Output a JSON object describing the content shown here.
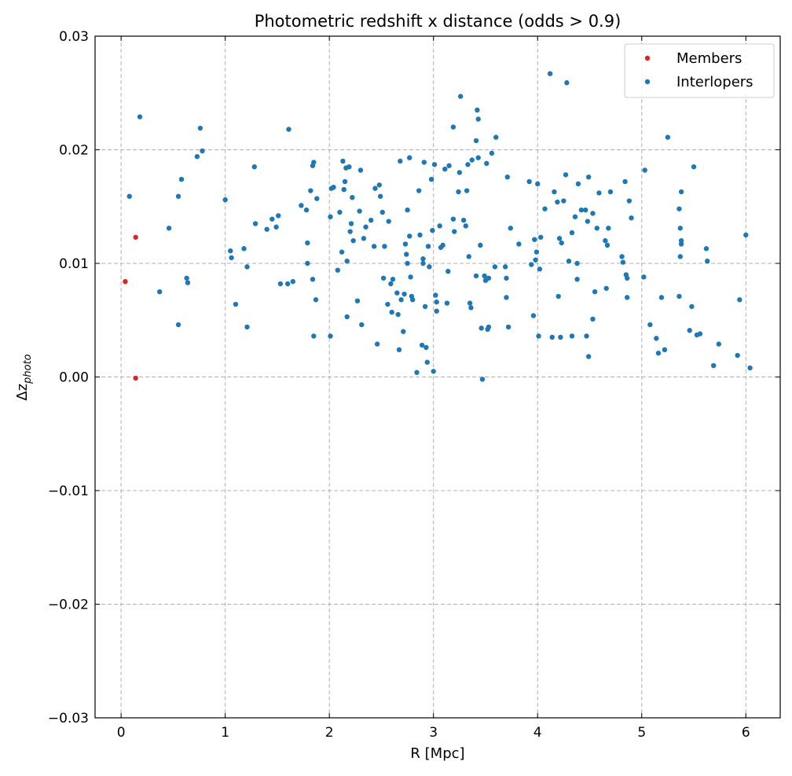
{
  "chart_data": {
    "type": "scatter",
    "title": "Photometric redshift x distance (odds > 0.9)",
    "xlabel": "R [Mpc]",
    "ylabel_main": "Δz",
    "ylabel_sub": "photo",
    "xlim": [
      -0.25,
      6.33
    ],
    "ylim": [
      -0.03,
      0.03
    ],
    "x_ticks": [
      0,
      1,
      2,
      3,
      4,
      5,
      6
    ],
    "x_tick_labels": [
      "0",
      "1",
      "2",
      "3",
      "4",
      "5",
      "6"
    ],
    "y_ticks": [
      -0.03,
      -0.02,
      -0.01,
      0.0,
      0.01,
      0.02,
      0.03
    ],
    "y_tick_labels": [
      "−0.03",
      "−0.02",
      "−0.01",
      "0.00",
      "0.01",
      "0.02",
      "0.03"
    ],
    "grid": true,
    "legend_position": "top-right",
    "series": [
      {
        "name": "Members",
        "color": "#d62728",
        "points": [
          [
            0.04,
            0.0084
          ],
          [
            0.14,
            0.0123
          ],
          [
            0.14,
            -0.0001
          ]
        ]
      },
      {
        "name": "Interlopers",
        "color": "#1f77b4",
        "points": [
          [
            0.08,
            0.0159
          ],
          [
            0.18,
            0.0229
          ],
          [
            0.37,
            0.0075
          ],
          [
            0.46,
            0.0131
          ],
          [
            0.55,
            0.0159
          ],
          [
            0.55,
            0.0046
          ],
          [
            0.58,
            0.0174
          ],
          [
            0.63,
            0.0087
          ],
          [
            0.64,
            0.0083
          ],
          [
            0.73,
            0.0194
          ],
          [
            0.76,
            0.0219
          ],
          [
            0.78,
            0.0199
          ],
          [
            1.0,
            0.0156
          ],
          [
            1.05,
            0.0111
          ],
          [
            1.06,
            0.0105
          ],
          [
            1.1,
            0.0064
          ],
          [
            1.18,
            0.0113
          ],
          [
            1.21,
            0.0097
          ],
          [
            1.21,
            0.0044
          ],
          [
            1.28,
            0.0185
          ],
          [
            1.29,
            0.0135
          ],
          [
            1.4,
            0.013
          ],
          [
            1.45,
            0.0139
          ],
          [
            1.49,
            0.0132
          ],
          [
            1.51,
            0.0142
          ],
          [
            1.53,
            0.0082
          ],
          [
            1.6,
            0.0082
          ],
          [
            1.61,
            0.0218
          ],
          [
            1.65,
            0.0084
          ],
          [
            1.73,
            0.0151
          ],
          [
            1.78,
            0.0147
          ],
          [
            1.79,
            0.01
          ],
          [
            1.79,
            0.0118
          ],
          [
            1.82,
            0.0164
          ],
          [
            1.84,
            0.0086
          ],
          [
            1.84,
            0.0186
          ],
          [
            1.85,
            0.0189
          ],
          [
            1.85,
            0.0036
          ],
          [
            1.87,
            0.0068
          ],
          [
            1.88,
            0.0157
          ],
          [
            2.01,
            0.0141
          ],
          [
            2.01,
            0.0036
          ],
          [
            2.02,
            0.0166
          ],
          [
            2.04,
            0.0167
          ],
          [
            2.08,
            0.0094
          ],
          [
            2.1,
            0.0145
          ],
          [
            2.12,
            0.011
          ],
          [
            2.13,
            0.019
          ],
          [
            2.14,
            0.0165
          ],
          [
            2.15,
            0.0172
          ],
          [
            2.16,
            0.0184
          ],
          [
            2.17,
            0.0102
          ],
          [
            2.17,
            0.0053
          ],
          [
            2.19,
            0.0185
          ],
          [
            2.2,
            0.0128
          ],
          [
            2.21,
            0.0135
          ],
          [
            2.22,
            0.0158
          ],
          [
            2.23,
            0.012
          ],
          [
            2.27,
            0.0067
          ],
          [
            2.29,
            0.0146
          ],
          [
            2.3,
            0.0182
          ],
          [
            2.31,
            0.0046
          ],
          [
            2.33,
            0.0122
          ],
          [
            2.35,
            0.0132
          ],
          [
            2.4,
            0.0138
          ],
          [
            2.43,
            0.0115
          ],
          [
            2.44,
            0.0166
          ],
          [
            2.46,
            0.0029
          ],
          [
            2.48,
            0.0169
          ],
          [
            2.49,
            0.0159
          ],
          [
            2.51,
            0.0145
          ],
          [
            2.52,
            0.0087
          ],
          [
            2.53,
            0.0115
          ],
          [
            2.56,
            0.0064
          ],
          [
            2.57,
            0.0137
          ],
          [
            2.59,
            0.0082
          ],
          [
            2.6,
            0.0057
          ],
          [
            2.61,
            0.0086
          ],
          [
            2.65,
            0.0074
          ],
          [
            2.66,
            0.0055
          ],
          [
            2.67,
            0.0024
          ],
          [
            2.68,
            0.019
          ],
          [
            2.69,
            0.0068
          ],
          [
            2.71,
            0.004
          ],
          [
            2.72,
            0.0073
          ],
          [
            2.73,
            0.0117
          ],
          [
            2.74,
            0.0108
          ],
          [
            2.75,
            0.0147
          ],
          [
            2.75,
            0.01
          ],
          [
            2.77,
            0.0124
          ],
          [
            2.77,
            0.0193
          ],
          [
            2.78,
            0.0088
          ],
          [
            2.79,
            0.0071
          ],
          [
            2.8,
            0.0068
          ],
          [
            2.84,
            0.0004
          ],
          [
            2.86,
            0.0164
          ],
          [
            2.87,
            0.0125
          ],
          [
            2.89,
            0.0028
          ],
          [
            2.9,
            0.0104
          ],
          [
            2.9,
            0.01
          ],
          [
            2.91,
            0.0189
          ],
          [
            2.92,
            0.0062
          ],
          [
            2.93,
            0.0026
          ],
          [
            2.94,
            0.0013
          ],
          [
            2.95,
            0.0115
          ],
          [
            2.96,
            0.0097
          ],
          [
            2.98,
            0.0174
          ],
          [
            2.99,
            0.0129
          ],
          [
            3.0,
            0.0005
          ],
          [
            3.01,
            0.0187
          ],
          [
            3.02,
            0.0072
          ],
          [
            3.03,
            0.0066
          ],
          [
            3.03,
            0.0058
          ],
          [
            3.06,
            0.0133
          ],
          [
            3.07,
            0.0114
          ],
          [
            3.09,
            0.0116
          ],
          [
            3.11,
            0.0183
          ],
          [
            3.13,
            0.0065
          ],
          [
            3.14,
            0.0093
          ],
          [
            3.15,
            0.0186
          ],
          [
            3.19,
            0.022
          ],
          [
            3.19,
            0.0139
          ],
          [
            3.2,
            0.0128
          ],
          [
            3.24,
            0.0163
          ],
          [
            3.25,
            0.018
          ],
          [
            3.26,
            0.0247
          ],
          [
            3.29,
            0.0138
          ],
          [
            3.31,
            0.0133
          ],
          [
            3.32,
            0.0164
          ],
          [
            3.33,
            0.0187
          ],
          [
            3.34,
            0.0106
          ],
          [
            3.35,
            0.0065
          ],
          [
            3.36,
            0.0061
          ],
          [
            3.37,
            0.0191
          ],
          [
            3.41,
            0.0208
          ],
          [
            3.41,
            0.0089
          ],
          [
            3.42,
            0.0235
          ],
          [
            3.43,
            0.0227
          ],
          [
            3.43,
            0.0193
          ],
          [
            3.45,
            0.0116
          ],
          [
            3.46,
            0.0043
          ],
          [
            3.47,
            -0.0002
          ],
          [
            3.49,
            0.0089
          ],
          [
            3.5,
            0.0085
          ],
          [
            3.51,
            0.0188
          ],
          [
            3.52,
            0.0042
          ],
          [
            3.53,
            0.0087
          ],
          [
            3.53,
            0.0044
          ],
          [
            3.56,
            0.0197
          ],
          [
            3.59,
            0.0097
          ],
          [
            3.6,
            0.0211
          ],
          [
            3.69,
            0.0097
          ],
          [
            3.7,
            0.0087
          ],
          [
            3.7,
            0.007
          ],
          [
            3.71,
            0.0176
          ],
          [
            3.72,
            0.0044
          ],
          [
            3.74,
            0.0131
          ],
          [
            3.82,
            0.0117
          ],
          [
            3.92,
            0.0172
          ],
          [
            3.94,
            0.0099
          ],
          [
            3.96,
            0.0054
          ],
          [
            3.97,
            0.0121
          ],
          [
            3.98,
            0.0103
          ],
          [
            3.99,
            0.011
          ],
          [
            4.0,
            0.017
          ],
          [
            4.01,
            0.0036
          ],
          [
            4.02,
            0.0095
          ],
          [
            4.03,
            0.0123
          ],
          [
            4.07,
            0.0148
          ],
          [
            4.12,
            0.0267
          ],
          [
            4.14,
            0.0035
          ],
          [
            4.16,
            0.0163
          ],
          [
            4.19,
            0.0154
          ],
          [
            4.2,
            0.0071
          ],
          [
            4.21,
            0.0122
          ],
          [
            4.22,
            0.0035
          ],
          [
            4.23,
            0.0118
          ],
          [
            4.25,
            0.0155
          ],
          [
            4.27,
            0.0178
          ],
          [
            4.28,
            0.0259
          ],
          [
            4.3,
            0.0102
          ],
          [
            4.33,
            0.0127
          ],
          [
            4.33,
            0.0036
          ],
          [
            4.36,
            0.0141
          ],
          [
            4.38,
            0.01
          ],
          [
            4.38,
            0.0086
          ],
          [
            4.39,
            0.017
          ],
          [
            4.42,
            0.0147
          ],
          [
            4.46,
            0.0147
          ],
          [
            4.47,
            0.0036
          ],
          [
            4.48,
            0.0137
          ],
          [
            4.49,
            0.0176
          ],
          [
            4.49,
            0.0018
          ],
          [
            4.53,
            0.0144
          ],
          [
            4.53,
            0.0051
          ],
          [
            4.55,
            0.0075
          ],
          [
            4.57,
            0.0131
          ],
          [
            4.59,
            0.0162
          ],
          [
            4.65,
            0.012
          ],
          [
            4.66,
            0.0078
          ],
          [
            4.67,
            0.0116
          ],
          [
            4.68,
            0.0131
          ],
          [
            4.7,
            0.0163
          ],
          [
            4.81,
            0.0106
          ],
          [
            4.82,
            0.0101
          ],
          [
            4.84,
            0.0172
          ],
          [
            4.85,
            0.009
          ],
          [
            4.86,
            0.0087
          ],
          [
            4.86,
            0.007
          ],
          [
            4.88,
            0.0155
          ],
          [
            4.9,
            0.014
          ],
          [
            5.02,
            0.0088
          ],
          [
            5.03,
            0.0182
          ],
          [
            5.08,
            0.0046
          ],
          [
            5.14,
            0.0034
          ],
          [
            5.16,
            0.0021
          ],
          [
            5.19,
            0.007
          ],
          [
            5.22,
            0.0024
          ],
          [
            5.25,
            0.0211
          ],
          [
            5.36,
            0.0148
          ],
          [
            5.36,
            0.0071
          ],
          [
            5.37,
            0.0131
          ],
          [
            5.37,
            0.0106
          ],
          [
            5.38,
            0.0163
          ],
          [
            5.38,
            0.012
          ],
          [
            5.38,
            0.0117
          ],
          [
            5.46,
            0.0041
          ],
          [
            5.48,
            0.0062
          ],
          [
            5.5,
            0.0185
          ],
          [
            5.53,
            0.0037
          ],
          [
            5.56,
            0.0038
          ],
          [
            5.62,
            0.0113
          ],
          [
            5.63,
            0.0102
          ],
          [
            5.69,
            0.001
          ],
          [
            5.74,
            0.0029
          ],
          [
            5.92,
            0.0019
          ],
          [
            5.94,
            0.0068
          ],
          [
            6.0,
            0.0125
          ],
          [
            6.04,
            0.0008
          ]
        ]
      }
    ]
  }
}
